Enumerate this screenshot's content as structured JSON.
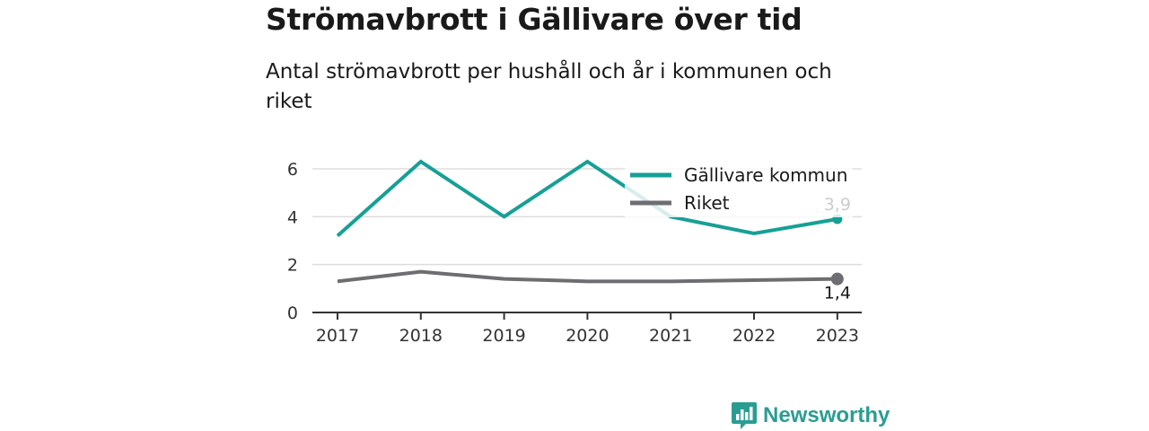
{
  "header": {
    "title": "Strömavbrott i Gällivare över tid",
    "subtitle": "Antal strömavbrott per hushåll och år i kommunen och riket"
  },
  "brand": {
    "name": "Newsworthy",
    "icon": "chart-bubble-logo-icon",
    "color": "#2a9d93"
  },
  "chart_data": {
    "type": "line",
    "x": [
      "2017",
      "2018",
      "2019",
      "2020",
      "2021",
      "2022",
      "2023"
    ],
    "ylim": [
      0,
      6.6
    ],
    "yticks": [
      0,
      2,
      4,
      6
    ],
    "grid": true,
    "legend_position": "top-right",
    "series": [
      {
        "name": "Gällivare kommun",
        "color": "#16a096",
        "values": [
          3.2,
          6.3,
          4.0,
          6.3,
          4.0,
          3.3,
          3.9
        ],
        "end_label": "3,9"
      },
      {
        "name": "Riket",
        "color": "#6d6d72",
        "values": [
          1.3,
          1.7,
          1.4,
          1.3,
          1.3,
          1.35,
          1.4
        ],
        "end_label": "1,4"
      }
    ]
  }
}
